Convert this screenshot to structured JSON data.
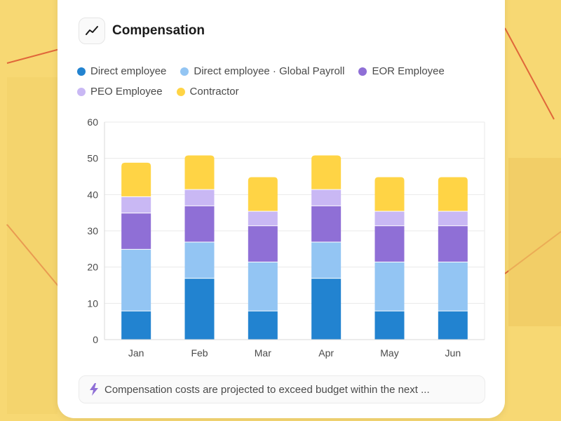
{
  "card": {
    "title": "Compensation",
    "icon": "trend-line-icon"
  },
  "footer": {
    "icon": "lightning-icon",
    "text": "Compensation costs are projected to exceed budget within the next ..."
  },
  "colors": {
    "background": "#F7D873",
    "accent_line": "#E0673A",
    "Direct employee": "#2283D0",
    "Direct employee · Global Payroll": "#93C5F3",
    "EOR Employee": "#8F6FD6",
    "PEO Employee": "#C9B8F4",
    "Contractor": "#FFD445"
  },
  "chart_data": {
    "type": "bar",
    "stacked": true,
    "categories": [
      "Jan",
      "Feb",
      "Mar",
      "Apr",
      "May",
      "Jun"
    ],
    "series": [
      {
        "name": "Direct employee",
        "values": [
          8,
          17,
          8,
          17,
          8,
          8
        ]
      },
      {
        "name": "Direct employee · Global Payroll",
        "values": [
          17,
          10,
          13.5,
          10,
          13.5,
          13.5
        ]
      },
      {
        "name": "EOR Employee",
        "values": [
          10,
          10,
          10,
          10,
          10,
          10
        ]
      },
      {
        "name": "PEO Employee",
        "values": [
          4.5,
          4.5,
          4,
          4.5,
          4,
          4
        ]
      },
      {
        "name": "Contractor",
        "values": [
          9.5,
          9.5,
          9.5,
          9.5,
          9.5,
          9.5
        ]
      }
    ],
    "title": "Compensation",
    "xlabel": "",
    "ylabel": "",
    "ylim": [
      0,
      60
    ],
    "yticks": [
      0,
      10,
      20,
      30,
      40,
      50,
      60
    ],
    "grid": true,
    "legend": "top"
  }
}
